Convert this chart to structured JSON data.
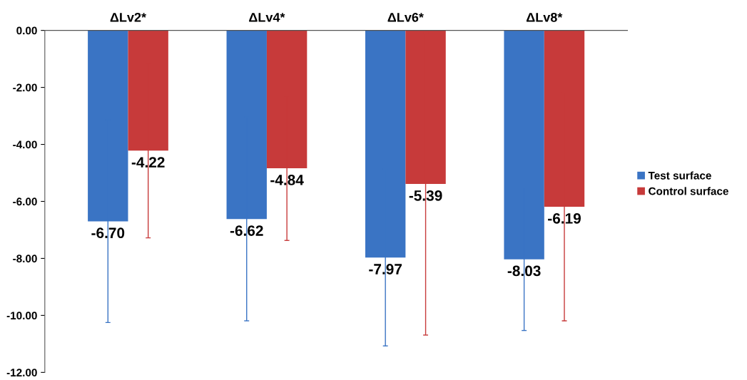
{
  "chart_data": {
    "type": "bar",
    "categories": [
      "ΔLv2*",
      "ΔLv4*",
      "ΔLv6*",
      "ΔLv8*"
    ],
    "series": [
      {
        "name": "Test surface",
        "color": "#3a74c4",
        "values": [
          -6.7,
          -6.62,
          -7.97,
          -8.03
        ],
        "value_labels": [
          "-6.70",
          "-6.62",
          "-7.97",
          "-8.03"
        ],
        "errors": [
          3.55,
          3.57,
          3.1,
          2.5
        ]
      },
      {
        "name": "Control surface",
        "color": "#c73a3a",
        "values": [
          -4.22,
          -4.84,
          -5.39,
          -6.19
        ],
        "value_labels": [
          "-4.22",
          "-4.84",
          "-5.39",
          "-6.19"
        ],
        "errors": [
          3.06,
          2.53,
          5.3,
          4.0
        ]
      }
    ],
    "ylim": [
      -12,
      0
    ],
    "yticks": [
      {
        "value": 0,
        "label": "0.00"
      },
      {
        "value": -2,
        "label": "-2.00"
      },
      {
        "value": -4,
        "label": "-4.00"
      },
      {
        "value": -6,
        "label": "-6.00"
      },
      {
        "value": -8,
        "label": "-8.00"
      },
      {
        "value": -10,
        "label": "-10.00"
      },
      {
        "value": -12,
        "label": "-12.00"
      }
    ],
    "grid": false,
    "legend": "right"
  }
}
